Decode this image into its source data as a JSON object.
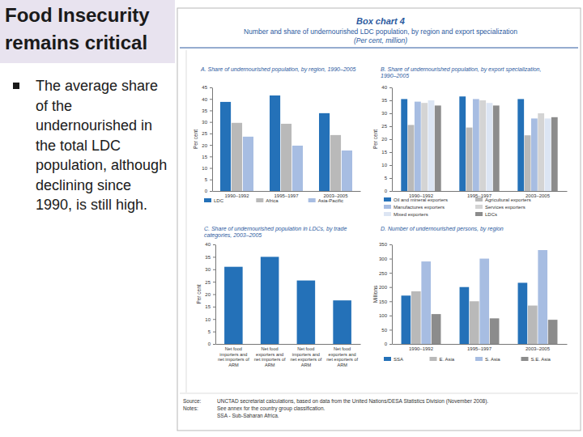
{
  "slide": {
    "title": "Food Insecurity remains critical",
    "bullets": [
      "The average share of the undernourished in the total LDC population, although declining since 1990, is still high."
    ]
  },
  "box": {
    "label": "Box chart 4",
    "title": "Number and share of undernourished LDC population, by region and export specialization",
    "unit": "(Per cent, million)",
    "source_label": "Source:",
    "source": "UNCTAD secretariat calculations, based on data from the United Nations/DESA Statistics Division (November 2008).",
    "notes_label": "Notes:",
    "notes": [
      "See annex for the country group classification.",
      "SSA - Sub-Saharan Africa."
    ]
  },
  "chart_data": [
    {
      "type": "bar",
      "title": "A. Share of undernourished population, by region, 1990–2005",
      "y_label": "Per cent",
      "categories": [
        "1990–1992",
        "1995–1997",
        "2003–2005"
      ],
      "series": [
        {
          "name": "LDC",
          "color": "#2471b8",
          "values": [
            38.7,
            41.5,
            33.8
          ]
        },
        {
          "name": "Africa",
          "color": "#b9b9b9",
          "values": [
            29.6,
            29.2,
            24.3
          ]
        },
        {
          "name": "Asia-Pacific",
          "color": "#a7bde2",
          "values": [
            23.6,
            19.7,
            17.6
          ]
        }
      ],
      "ylim": [
        0,
        45
      ],
      "yticks": [
        0,
        5,
        10,
        15,
        20,
        25,
        30,
        35,
        40,
        45
      ],
      "legend": "bottom"
    },
    {
      "type": "bar",
      "title": "B. Share of undernourished population, by export specialization, 1990–2005",
      "y_label": "Per cent",
      "categories": [
        "1990–1992",
        "1995–1997",
        "2003–2005"
      ],
      "series": [
        {
          "name": "Oil and mineral exporters",
          "color": "#2471b8",
          "values": [
            35.5,
            36.5,
            35.5
          ]
        },
        {
          "name": "Agricultural exporters",
          "color": "#b9b9b9",
          "values": [
            25.5,
            24.5,
            21.5
          ]
        },
        {
          "name": "Manufactures exporters",
          "color": "#a7bde2",
          "values": [
            34.5,
            35.5,
            28
          ]
        },
        {
          "name": "Services exporters",
          "color": "#d4d4d4",
          "values": [
            34,
            35,
            30
          ]
        },
        {
          "name": "Mixed exporters",
          "color": "#dce5f3",
          "values": [
            35,
            34,
            28
          ]
        },
        {
          "name": "LDCs",
          "color": "#8c8c8c",
          "values": [
            33,
            33,
            28.5
          ]
        }
      ],
      "ylim": [
        0,
        40
      ],
      "yticks": [
        0,
        5,
        10,
        15,
        20,
        25,
        30,
        35,
        40
      ],
      "legend": "bottom"
    },
    {
      "type": "bar",
      "title": "C. Share of undernourished population in LDCs, by trade categories, 2003–2005",
      "y_label": "Per cent",
      "categories": [
        "Net food importers and net importers of ARM",
        "Net food exporters and net importers of ARM",
        "Net food importers and net exporters of ARM",
        "Net food exporters and net exporters of ARM"
      ],
      "values": [
        31,
        35,
        25.5,
        17.5
      ],
      "color": "#2471b8",
      "ylim": [
        0,
        40
      ],
      "yticks": [
        0,
        5,
        10,
        15,
        20,
        25,
        30,
        35,
        40
      ]
    },
    {
      "type": "bar",
      "title": "D. Number of undernourished persons, by region",
      "y_label": "Millions",
      "categories": [
        "1990–1992",
        "1995–1997",
        "2003–2005"
      ],
      "series": [
        {
          "name": "SSA",
          "color": "#2471b8",
          "values": [
            170,
            200,
            215
          ]
        },
        {
          "name": "E. Asia",
          "color": "#b9b9b9",
          "values": [
            185,
            150,
            135
          ]
        },
        {
          "name": "S. Asia",
          "color": "#a7bde2",
          "values": [
            290,
            300,
            330
          ]
        },
        {
          "name": "S.E. Asia",
          "color": "#8c8c8c",
          "values": [
            105,
            90,
            85
          ]
        }
      ],
      "ylim": [
        0,
        350
      ],
      "yticks": [
        0,
        50,
        100,
        150,
        200,
        250,
        300,
        350
      ],
      "legend": "bottom"
    }
  ]
}
